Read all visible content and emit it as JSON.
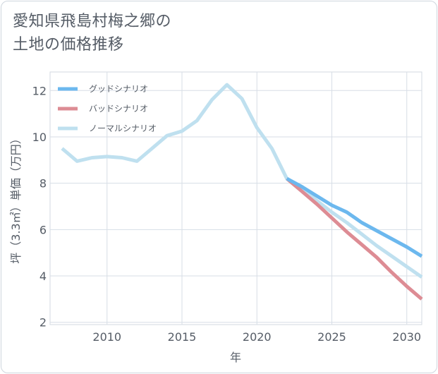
{
  "title_lines": [
    "愛知県飛島村梅之郷の",
    "土地の価格推移"
  ],
  "chart_data": {
    "type": "line",
    "xlabel": "年",
    "ylabel": "坪（3.3㎡）単価（万円）",
    "xlim": [
      2006.2,
      2031
    ],
    "ylim": [
      1.9,
      12.8
    ],
    "x_ticks": [
      2010,
      2015,
      2020,
      2025,
      2030
    ],
    "y_ticks": [
      2,
      4,
      6,
      8,
      10,
      12
    ],
    "legend_position": "top-left",
    "grid": true,
    "series": [
      {
        "name": "グッドシナリオ",
        "color": "#6cb8ee",
        "x": [
          2022,
          2023,
          2024,
          2025,
          2026,
          2027,
          2028,
          2029,
          2030,
          2031
        ],
        "y": [
          8.2,
          7.85,
          7.45,
          7.05,
          6.75,
          6.3,
          5.95,
          5.6,
          5.25,
          4.85
        ]
      },
      {
        "name": "バッドシナリオ",
        "color": "#dd8c94",
        "x": [
          2022,
          2023,
          2024,
          2025,
          2026,
          2027,
          2028,
          2029,
          2030,
          2031
        ],
        "y": [
          8.2,
          7.65,
          7.1,
          6.5,
          5.9,
          5.35,
          4.8,
          4.15,
          3.55,
          3.0
        ]
      },
      {
        "name": "ノーマルシナリオ",
        "color": "#bfe0ef",
        "x": [
          2007,
          2008,
          2009,
          2010,
          2011,
          2012,
          2013,
          2014,
          2015,
          2016,
          2017,
          2018,
          2019,
          2020,
          2021,
          2022,
          2023,
          2024,
          2025,
          2026,
          2027,
          2028,
          2029,
          2030,
          2031
        ],
        "y": [
          9.5,
          8.95,
          9.1,
          9.15,
          9.1,
          8.95,
          9.5,
          10.05,
          10.25,
          10.7,
          11.6,
          12.25,
          11.65,
          10.4,
          9.5,
          8.2,
          7.75,
          7.25,
          6.75,
          6.3,
          5.8,
          5.3,
          4.85,
          4.4,
          3.95
        ]
      }
    ]
  }
}
